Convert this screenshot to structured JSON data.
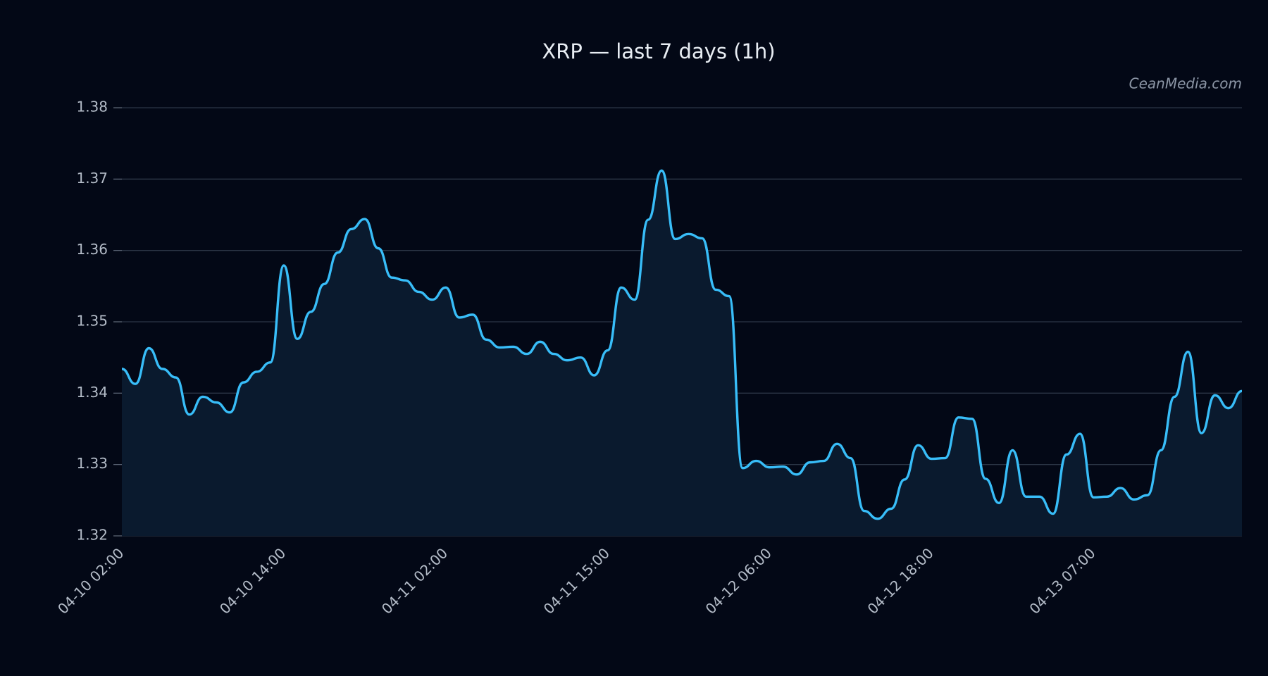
{
  "chart_data": {
    "type": "line",
    "title": "XRP — last 7 days (1h)",
    "watermark": "CeanMedia.com",
    "categories": [
      "04-10 02:00",
      null,
      null,
      null,
      null,
      null,
      null,
      null,
      null,
      null,
      null,
      null,
      "04-10 14:00",
      null,
      null,
      null,
      null,
      null,
      null,
      null,
      null,
      null,
      null,
      null,
      "04-11 02:00",
      null,
      null,
      null,
      null,
      null,
      null,
      null,
      null,
      null,
      null,
      null,
      "04-11 15:00",
      null,
      null,
      null,
      null,
      null,
      null,
      null,
      null,
      null,
      null,
      null,
      "04-12 06:00",
      null,
      null,
      null,
      null,
      null,
      null,
      null,
      null,
      null,
      null,
      null,
      "04-12 18:00",
      null,
      null,
      null,
      null,
      null,
      null,
      null,
      null,
      null,
      null,
      null,
      "04-13 07:00",
      null,
      null,
      null,
      null,
      null,
      null,
      null,
      null,
      null,
      null,
      null
    ],
    "series": [
      {
        "color": "#38bdf8",
        "values": [
          1.3434,
          1.3413,
          1.3463,
          1.3434,
          1.3422,
          1.337,
          1.3395,
          1.3387,
          1.3373,
          1.3415,
          1.343,
          1.3443,
          1.3579,
          1.3476,
          1.3514,
          1.3553,
          1.3597,
          1.363,
          1.3644,
          1.3603,
          1.3562,
          1.3558,
          1.3542,
          1.3531,
          1.3548,
          1.3506,
          1.351,
          1.3475,
          1.3464,
          1.3465,
          1.3455,
          1.3472,
          1.3455,
          1.3446,
          1.345,
          1.3425,
          1.346,
          1.3548,
          1.3531,
          1.3643,
          1.3712,
          1.3616,
          1.3623,
          1.3617,
          1.3545,
          1.3536,
          1.3295,
          1.3305,
          1.3296,
          1.3297,
          1.3286,
          1.3303,
          1.3305,
          1.3329,
          1.3309,
          1.3235,
          1.3224,
          1.3238,
          1.3279,
          1.3327,
          1.3308,
          1.3309,
          1.3366,
          1.3364,
          1.328,
          1.3246,
          1.332,
          1.3255,
          1.3255,
          1.3231,
          1.3314,
          1.3343,
          1.3254,
          1.3255,
          1.3267,
          1.3251,
          1.3257,
          1.332,
          1.3395,
          1.3458,
          1.3344,
          1.3397,
          1.3379,
          1.3403
        ]
      }
    ],
    "ylim": [
      1.32,
      1.38
    ],
    "yticks": [
      1.32,
      1.33,
      1.34,
      1.35,
      1.36,
      1.37,
      1.38
    ],
    "grid": true,
    "area_fill": "#0a1a2e"
  }
}
